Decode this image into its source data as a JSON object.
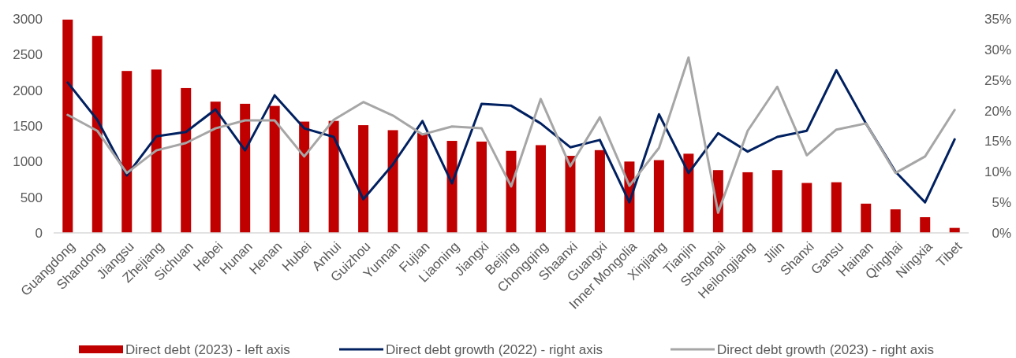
{
  "chart_data": {
    "type": "bar",
    "categories": [
      "Guangdong",
      "Shandong",
      "Jiangsu",
      "Zhejiang",
      "Sichuan",
      "Hebei",
      "Hunan",
      "Henan",
      "Hubei",
      "Anhui",
      "Guizhou",
      "Yunnan",
      "Fujian",
      "Liaoning",
      "Jiangxi",
      "Beijing",
      "Chongqing",
      "Shaanxi",
      "Guangxi",
      "Inner Mongolia",
      "Xinjiang",
      "Tianjin",
      "Shanghai",
      "Heilongjiang",
      "Jilin",
      "Shanxi",
      "Gansu",
      "Hainan",
      "Qinghai",
      "Ningxia",
      "Tibet"
    ],
    "series": [
      {
        "name": "Direct debt (2023) - left axis",
        "color": "#c00000",
        "values": [
          2990,
          2760,
          2270,
          2290,
          2030,
          1840,
          1810,
          1780,
          1560,
          1570,
          1510,
          1440,
          1400,
          1290,
          1280,
          1150,
          1230,
          1080,
          1160,
          1000,
          1020,
          1110,
          880,
          850,
          880,
          700,
          710,
          410,
          330,
          220,
          70
        ]
      },
      {
        "name": "Direct debt growth (2022) - right axis",
        "type": "line",
        "axis": "y2",
        "color": "#002060",
        "values": [
          24.6,
          18.5,
          9.4,
          15.8,
          16.5,
          20.2,
          13.5,
          22.5,
          17.1,
          15.7,
          5.5,
          11.2,
          18.3,
          8.1,
          21.1,
          20.8,
          17.9,
          14.0,
          15.2,
          5.0,
          19.4,
          9.8,
          16.3,
          13.3,
          15.7,
          16.7,
          26.6,
          17.9,
          10.0,
          5.0,
          15.3
        ]
      },
      {
        "name": "Direct debt growth (2023) - right axis",
        "type": "line",
        "axis": "y2",
        "color": "#a6a6a6",
        "values": [
          19.3,
          16.7,
          9.8,
          13.5,
          14.7,
          17.1,
          18.4,
          18.4,
          12.5,
          18.5,
          21.4,
          19.2,
          16.1,
          17.4,
          17.1,
          7.6,
          21.9,
          10.9,
          18.9,
          7.7,
          13.9,
          28.7,
          3.3,
          16.7,
          23.9,
          12.7,
          16.9,
          17.9,
          9.8,
          12.5,
          20.1
        ]
      }
    ],
    "ylim": [
      0,
      3000
    ],
    "yticks": [
      0,
      500,
      1000,
      1500,
      2000,
      2500,
      3000
    ],
    "y2lim": [
      0,
      35
    ],
    "y2ticks": [
      {
        "value": 0,
        "label": "0%"
      },
      {
        "value": 5,
        "label": "5%"
      },
      {
        "value": 10,
        "label": "10%"
      },
      {
        "value": 15,
        "label": "15%"
      },
      {
        "value": 20,
        "label": "20%"
      },
      {
        "value": 25,
        "label": "25%"
      },
      {
        "value": 30,
        "label": "30%"
      },
      {
        "value": 35,
        "label": "35%"
      }
    ],
    "legend": "bottom",
    "grid": false,
    "marker": "none",
    "line_style": "solid"
  }
}
